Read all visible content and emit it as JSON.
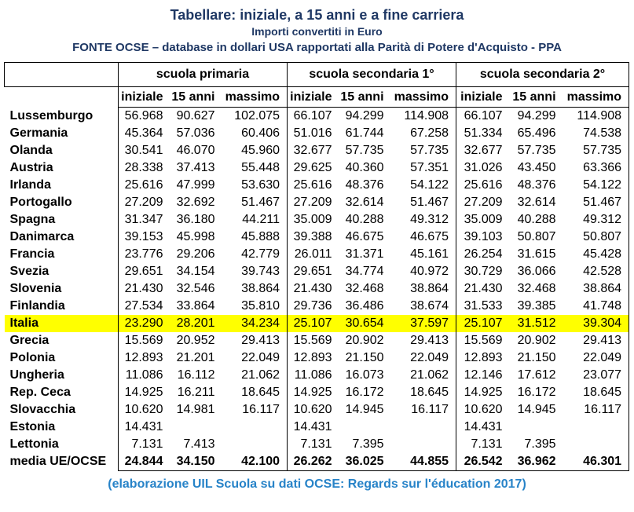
{
  "header": {
    "title": "Tabellare: iniziale, a 15 anni e a fine carriera",
    "subtitle": "Importi convertiti in Euro",
    "source": "FONTE OCSE – database in dollari USA rapportati alla Parità di Potere d'Acquisto - PPA"
  },
  "table": {
    "groups": [
      "scuola primaria",
      "scuola secondaria 1°",
      "scuola secondaria 2°"
    ],
    "subheaders": [
      "iniziale",
      "15 anni",
      "massimo"
    ],
    "rows": [
      {
        "country": "Lussemburgo",
        "values": [
          "56.968",
          "90.627",
          "102.075",
          "66.107",
          "94.299",
          "114.908",
          "66.107",
          "94.299",
          "114.908"
        ]
      },
      {
        "country": "Germania",
        "values": [
          "45.364",
          "57.036",
          "60.406",
          "51.016",
          "61.744",
          "67.258",
          "51.334",
          "65.496",
          "74.538"
        ]
      },
      {
        "country": "Olanda",
        "values": [
          "30.541",
          "46.070",
          "45.960",
          "32.677",
          "57.735",
          "57.735",
          "32.677",
          "57.735",
          "57.735"
        ]
      },
      {
        "country": "Austria",
        "values": [
          "28.338",
          "37.413",
          "55.448",
          "29.625",
          "40.360",
          "57.351",
          "31.026",
          "43.450",
          "63.366"
        ]
      },
      {
        "country": "Irlanda",
        "values": [
          "25.616",
          "47.999",
          "53.630",
          "25.616",
          "48.376",
          "54.122",
          "25.616",
          "48.376",
          "54.122"
        ]
      },
      {
        "country": "Portogallo",
        "values": [
          "27.209",
          "32.692",
          "51.467",
          "27.209",
          "32.614",
          "51.467",
          "27.209",
          "32.614",
          "51.467"
        ]
      },
      {
        "country": "Spagna",
        "values": [
          "31.347",
          "36.180",
          "44.211",
          "35.009",
          "40.288",
          "49.312",
          "35.009",
          "40.288",
          "49.312"
        ]
      },
      {
        "country": "Danimarca",
        "values": [
          "39.153",
          "45.998",
          "45.888",
          "39.388",
          "46.675",
          "46.675",
          "39.103",
          "50.807",
          "50.807"
        ]
      },
      {
        "country": "Francia",
        "values": [
          "23.776",
          "29.206",
          "42.779",
          "26.011",
          "31.371",
          "45.161",
          "26.254",
          "31.615",
          "45.428"
        ]
      },
      {
        "country": "Svezia",
        "values": [
          "29.651",
          "34.154",
          "39.743",
          "29.651",
          "34.774",
          "40.972",
          "30.729",
          "36.066",
          "42.528"
        ]
      },
      {
        "country": "Slovenia",
        "values": [
          "21.430",
          "32.546",
          "38.864",
          "21.430",
          "32.468",
          "38.864",
          "21.430",
          "32.468",
          "38.864"
        ]
      },
      {
        "country": "Finlandia",
        "values": [
          "27.534",
          "33.864",
          "35.810",
          "29.736",
          "36.486",
          "38.674",
          "31.533",
          "39.385",
          "41.748"
        ]
      },
      {
        "country": "Italia",
        "highlight": true,
        "values": [
          "23.290",
          "28.201",
          "34.234",
          "25.107",
          "30.654",
          "37.597",
          "25.107",
          "31.512",
          "39.304"
        ]
      },
      {
        "country": "Grecia",
        "values": [
          "15.569",
          "20.952",
          "29.413",
          "15.569",
          "20.902",
          "29.413",
          "15.569",
          "20.902",
          "29.413"
        ]
      },
      {
        "country": "Polonia",
        "values": [
          "12.893",
          "21.201",
          "22.049",
          "12.893",
          "21.150",
          "22.049",
          "12.893",
          "21.150",
          "22.049"
        ]
      },
      {
        "country": "Ungheria",
        "values": [
          "11.086",
          "16.112",
          "21.062",
          "11.086",
          "16.073",
          "21.062",
          "12.146",
          "17.612",
          "23.077"
        ]
      },
      {
        "country": "Rep. Ceca",
        "values": [
          "14.925",
          "16.211",
          "18.645",
          "14.925",
          "16.172",
          "18.645",
          "14.925",
          "16.172",
          "18.645"
        ]
      },
      {
        "country": "Slovacchia",
        "values": [
          "10.620",
          "14.981",
          "16.117",
          "10.620",
          "14.945",
          "16.117",
          "10.620",
          "14.945",
          "16.117"
        ]
      },
      {
        "country": "Estonia",
        "values": [
          "14.431",
          "",
          "",
          "14.431",
          "",
          "",
          "14.431",
          "",
          ""
        ]
      },
      {
        "country": "Lettonia",
        "values": [
          "7.131",
          "7.413",
          "",
          "7.131",
          "7.395",
          "",
          "7.131",
          "7.395",
          ""
        ]
      },
      {
        "country": "media UE/OCSE",
        "bold": true,
        "values": [
          "24.844",
          "34.150",
          "42.100",
          "26.262",
          "36.025",
          "44.855",
          "26.542",
          "36.962",
          "46.301"
        ]
      }
    ]
  },
  "footer": {
    "credit": "(elaborazione UIL Scuola su dati OCSE: Regards sur l'éducation 2017)"
  },
  "colors": {
    "title_navy": "#1f3864",
    "credit_blue": "#2783c8",
    "highlight_yellow": "#ffff00",
    "border_black": "#000000"
  }
}
